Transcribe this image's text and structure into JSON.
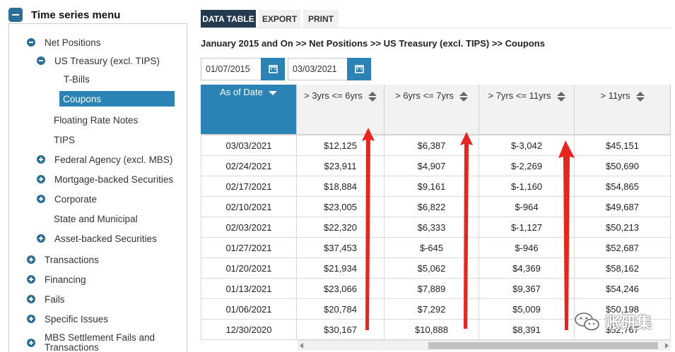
{
  "sidebar": {
    "title": "Time series menu",
    "items": [
      {
        "label": "Net Positions"
      },
      {
        "label": "US Treasury (excl. TIPS)"
      },
      {
        "label": "T-Bills"
      },
      {
        "label": "Coupons"
      },
      {
        "label": "Floating Rate Notes"
      },
      {
        "label": "TIPS"
      },
      {
        "label": "Federal Agency (excl. MBS)"
      },
      {
        "label": "Mortgage-backed Securities"
      },
      {
        "label": "Corporate"
      },
      {
        "label": "State and Municipal"
      },
      {
        "label": "Asset-backed Securities"
      },
      {
        "label": "Transactions"
      },
      {
        "label": "Financing"
      },
      {
        "label": "Fails"
      },
      {
        "label": "Specific Issues"
      },
      {
        "label": "MBS Settlement Fails and"
      },
      {
        "label": "Transactions"
      }
    ]
  },
  "tabs": [
    {
      "label": "DATA TABLE"
    },
    {
      "label": "EXPORT"
    },
    {
      "label": "PRINT"
    }
  ],
  "breadcrumb": "January 2015 and On >> Net Positions >> US Treasury (excl. TIPS) >> Coupons",
  "date_range": {
    "start": "01/07/2015",
    "end": "03/03/2021"
  },
  "table": {
    "headers": [
      "As of Date",
      "> 3yrs <= 6yrs",
      "> 6yrs <= 7yrs",
      "> 7yrs <= 11yrs",
      "> 11yrs"
    ],
    "rows": [
      [
        "03/03/2021",
        "$12,125",
        "$6,387",
        "$-3,042",
        "$45,151"
      ],
      [
        "02/24/2021",
        "$23,911",
        "$4,907",
        "$-2,269",
        "$50,690"
      ],
      [
        "02/17/2021",
        "$18,884",
        "$9,161",
        "$-1,160",
        "$54,865"
      ],
      [
        "02/10/2021",
        "$23,005",
        "$6,822",
        "$-964",
        "$49,687"
      ],
      [
        "02/03/2021",
        "$22,320",
        "$6,333",
        "$-1,127",
        "$50,213"
      ],
      [
        "01/27/2021",
        "$37,453",
        "$-645",
        "$-946",
        "$52,687"
      ],
      [
        "01/20/2021",
        "$21,934",
        "$5,062",
        "$4,369",
        "$58,162"
      ],
      [
        "01/13/2021",
        "$23,066",
        "$7,889",
        "$9,367",
        "$54,246"
      ],
      [
        "01/06/2021",
        "$20,784",
        "$7,292",
        "$5,009",
        "$50,198"
      ],
      [
        "12/30/2020",
        "$30,167",
        "$10,888",
        "$8,391",
        "$52,767"
      ]
    ]
  },
  "watermark": "账研集",
  "colors": {
    "accent": "#2b82b5",
    "tab_active": "#233a4f",
    "annotation": "#e8241c"
  }
}
